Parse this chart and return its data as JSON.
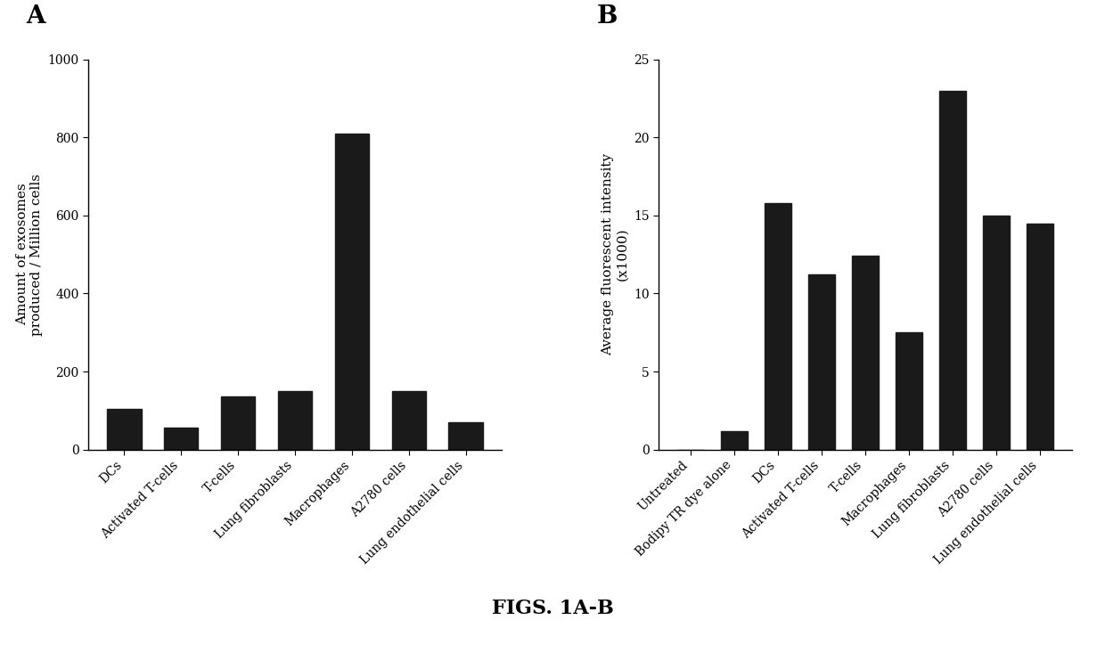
{
  "panel_A": {
    "label": "A",
    "categories": [
      "DCs",
      "Activated T-cells",
      "T-cells",
      "Lung fibroblasts",
      "Macrophages",
      "A2780 cells",
      "Lung endothelial cells"
    ],
    "values": [
      105,
      55,
      135,
      150,
      810,
      150,
      70
    ],
    "ylabel_line1": "Amount of exosomes",
    "ylabel_line2": "produced / Million cells",
    "ylim": [
      0,
      1000
    ],
    "yticks": [
      0,
      200,
      400,
      600,
      800,
      1000
    ]
  },
  "panel_B": {
    "label": "B",
    "categories": [
      "Untreated",
      "Bodipy TR dye alone",
      "DCs",
      "Activated T-cells",
      "T-cells",
      "Macrophages",
      "Lung fibroblasts",
      "A2780 cells",
      "Lung endothelial cells"
    ],
    "values": [
      0,
      1.2,
      15.8,
      11.2,
      12.4,
      7.5,
      23.0,
      15.0,
      14.5
    ],
    "ylabel_line1": "Average fluorescent intensity",
    "ylabel_line2": "(x1000)",
    "ylim": [
      0,
      25
    ],
    "yticks": [
      0,
      5,
      10,
      15,
      20,
      25
    ]
  },
  "caption": "FIGS. 1A-B",
  "bar_color": "#1a1a1a",
  "background_color": "#ffffff",
  "label_fontsize": 20,
  "tick_fontsize": 10,
  "ylabel_fontsize": 11,
  "caption_fontsize": 16
}
